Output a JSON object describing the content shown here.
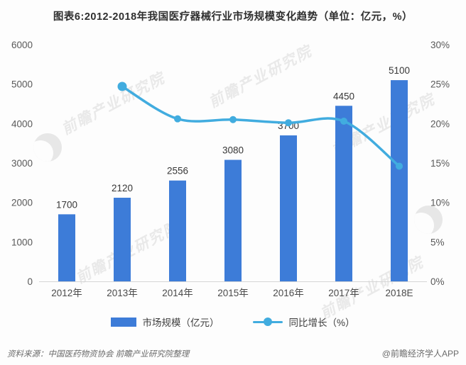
{
  "title": "图表6:2012-2018年我国医疗器械行业市场规模变化趋势（单位：亿元，%）",
  "chart_data": {
    "type": "bar",
    "subtype": "bar-line-combo",
    "title": "图表6:2012-2018年我国医疗器械行业市场规模变化趋势（单位：亿元，%）",
    "categories": [
      "2012年",
      "2013年",
      "2014年",
      "2015年",
      "2016年",
      "2017年",
      "2018E"
    ],
    "series": [
      {
        "name": "市场规模（亿元）",
        "type": "bar",
        "axis": "left",
        "values": [
          1700,
          2120,
          2556,
          3080,
          3700,
          4450,
          5100
        ]
      },
      {
        "name": "同比增长（%）",
        "type": "line",
        "axis": "right",
        "values": [
          null,
          24.7,
          20.6,
          20.5,
          20.1,
          20.3,
          14.6
        ]
      }
    ],
    "left_axis": {
      "min": 0,
      "max": 6000,
      "ticks": [
        0,
        1000,
        2000,
        3000,
        4000,
        5000,
        6000
      ]
    },
    "right_axis": {
      "min": 0,
      "max": 30,
      "ticks": [
        0,
        5,
        10,
        15,
        20,
        25,
        30
      ],
      "suffix": "%"
    },
    "grid": false,
    "legend_position": "bottom",
    "colors": {
      "bar": "#3d7cd8",
      "line": "#41acdf"
    }
  },
  "legend": [
    {
      "label": "市场规模（亿元）",
      "swatch": "bar"
    },
    {
      "label": "同比增长（%）",
      "swatch": "line-dot"
    }
  ],
  "footer": {
    "source": "资料来源：中国医药物资协会  前瞻产业研究院整理",
    "credit": "@前瞻经济学人APP"
  },
  "watermark": {
    "text": "前瞻产业研究院",
    "logo": "qianzhan-crescent-logo"
  }
}
